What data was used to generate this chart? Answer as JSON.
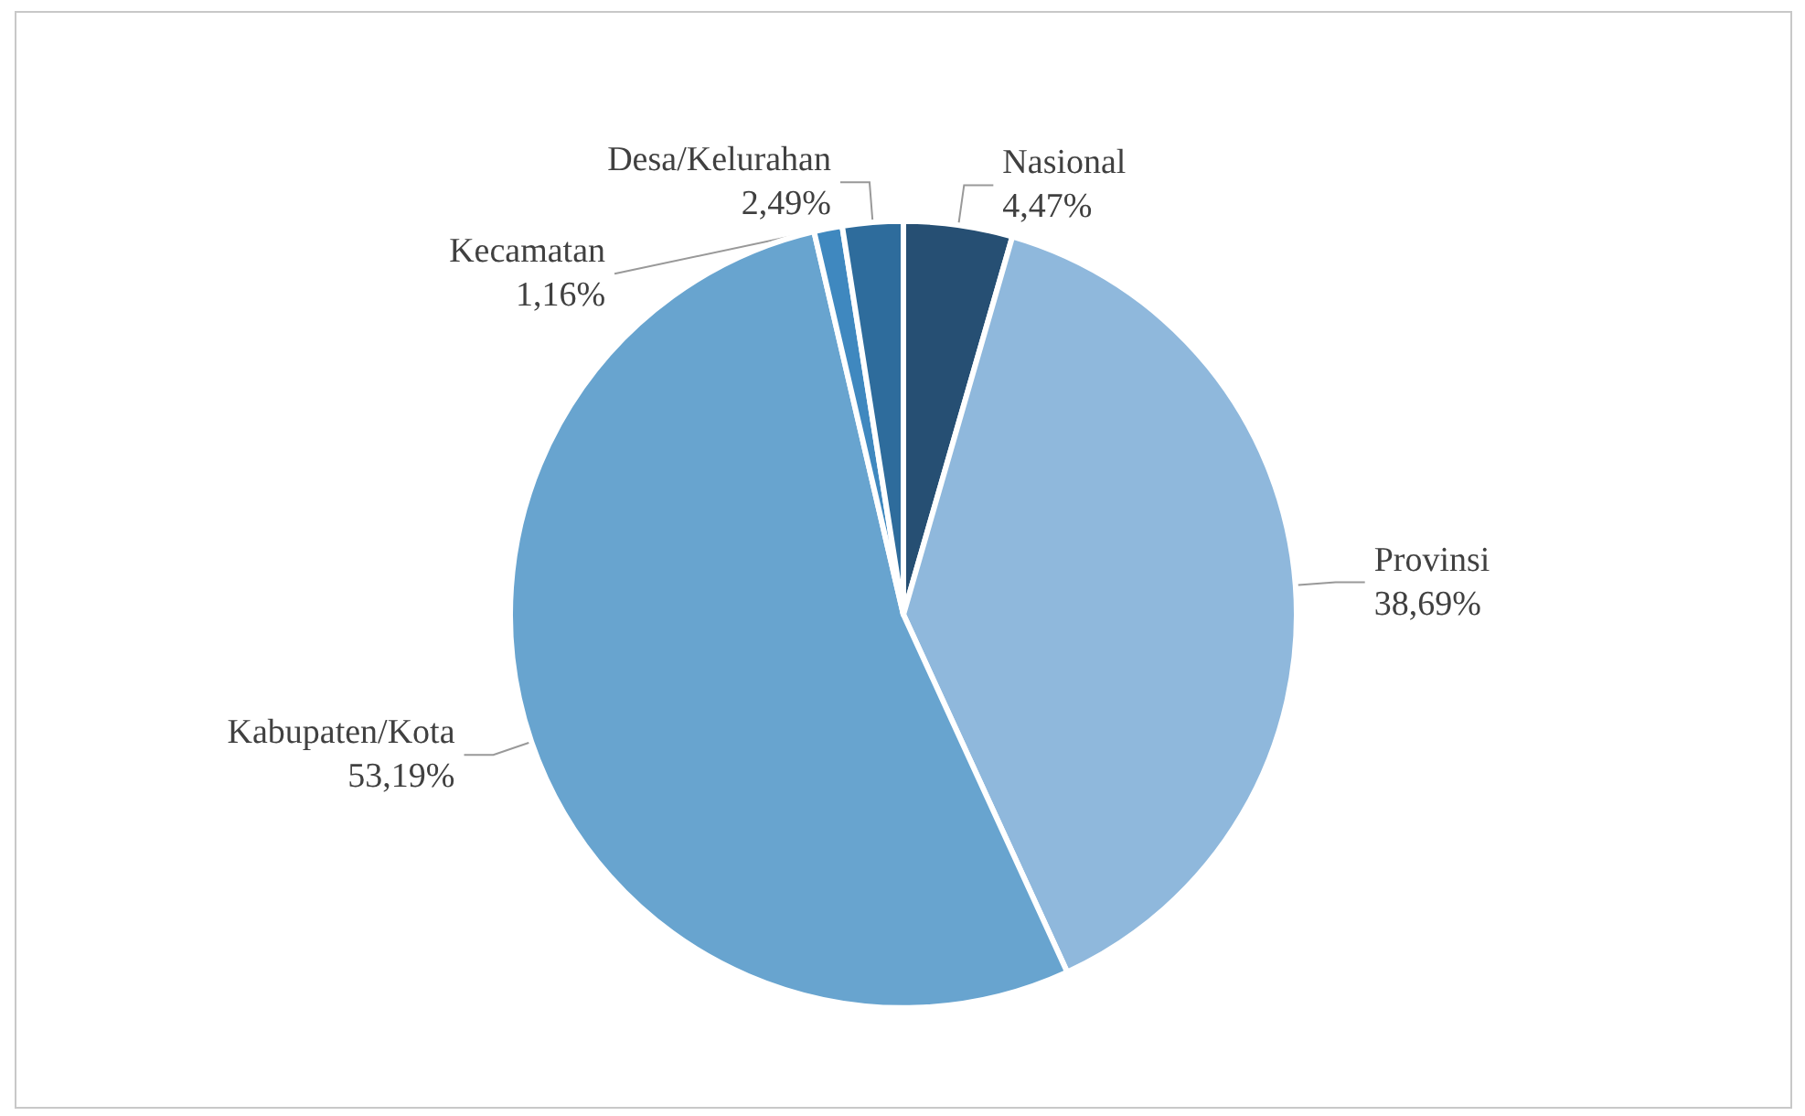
{
  "chart_data": {
    "type": "pie",
    "categories": [
      "Nasional",
      "Provinsi",
      "Kabupaten/Kota",
      "Kecamatan",
      "Desa/Kelurahan"
    ],
    "values": [
      4.47,
      38.69,
      53.19,
      1.16,
      2.49
    ],
    "value_labels": [
      "4,47%",
      "38,69%",
      "53,19%",
      "1,16%",
      "2,49%"
    ],
    "colors": [
      "#264f73",
      "#8fb8dc",
      "#68a4cf",
      "#3f88bf",
      "#2e6c9c"
    ],
    "legend": false
  }
}
